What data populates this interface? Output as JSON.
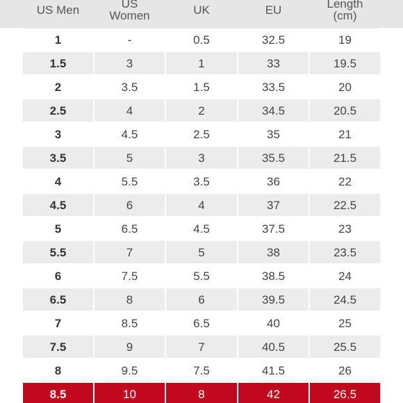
{
  "table": {
    "header": [
      "US Men",
      "US\nWomen",
      "UK",
      "EU",
      "Length\n(cm)"
    ],
    "rows": [
      [
        "1",
        "-",
        "0.5",
        "32.5",
        "19"
      ],
      [
        "1.5",
        "3",
        "1",
        "33",
        "19.5"
      ],
      [
        "2",
        "3.5",
        "1.5",
        "33.5",
        "20"
      ],
      [
        "2.5",
        "4",
        "2",
        "34.5",
        "20.5"
      ],
      [
        "3",
        "4.5",
        "2.5",
        "35",
        "21"
      ],
      [
        "3.5",
        "5",
        "3",
        "35.5",
        "21.5"
      ],
      [
        "4",
        "5.5",
        "3.5",
        "36",
        "22"
      ],
      [
        "4.5",
        "6",
        "4",
        "37",
        "22.5"
      ],
      [
        "5",
        "6.5",
        "4.5",
        "37.5",
        "23"
      ],
      [
        "5.5",
        "7",
        "5",
        "38",
        "23.5"
      ],
      [
        "6",
        "7.5",
        "5.5",
        "38.5",
        "24"
      ],
      [
        "6.5",
        "8",
        "6",
        "39.5",
        "24.5"
      ],
      [
        "7",
        "8.5",
        "6.5",
        "40",
        "25"
      ],
      [
        "7.5",
        "9",
        "7",
        "40.5",
        "25.5"
      ],
      [
        "8",
        "9.5",
        "7.5",
        "41.5",
        "26"
      ],
      [
        "8.5",
        "10",
        "8",
        "42",
        "26.5"
      ]
    ],
    "highlight_row": 15
  }
}
